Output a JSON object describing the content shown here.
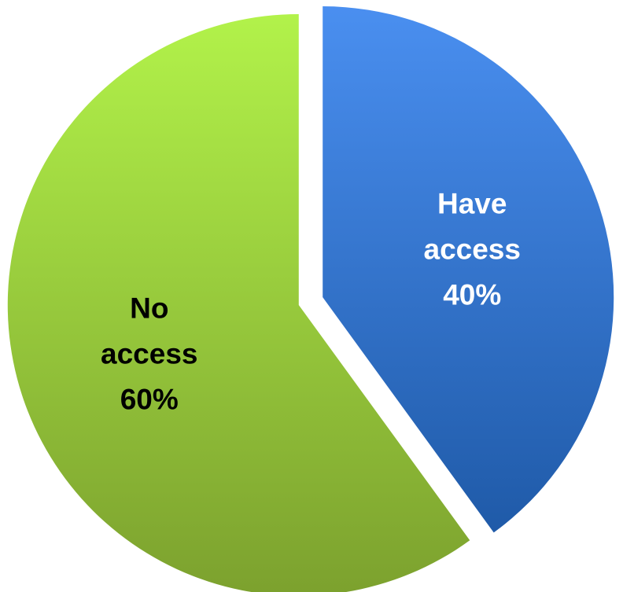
{
  "chart_data": {
    "type": "pie",
    "title": "",
    "legend": "none",
    "exploded": true,
    "slices": [
      {
        "label": "Have access",
        "value": 40,
        "value_label": "40%",
        "label_lines": [
          "Have",
          "access",
          "40%"
        ],
        "color_top": "#4a8ff0",
        "color_bottom": "#1f5aa8",
        "label_color": "#ffffff"
      },
      {
        "label": "No access",
        "value": 60,
        "value_label": "60%",
        "label_lines": [
          "No",
          "access",
          "60%"
        ],
        "color_top": "#b2f24a",
        "color_bottom": "#7ca12e",
        "label_color": "#000000"
      }
    ]
  }
}
